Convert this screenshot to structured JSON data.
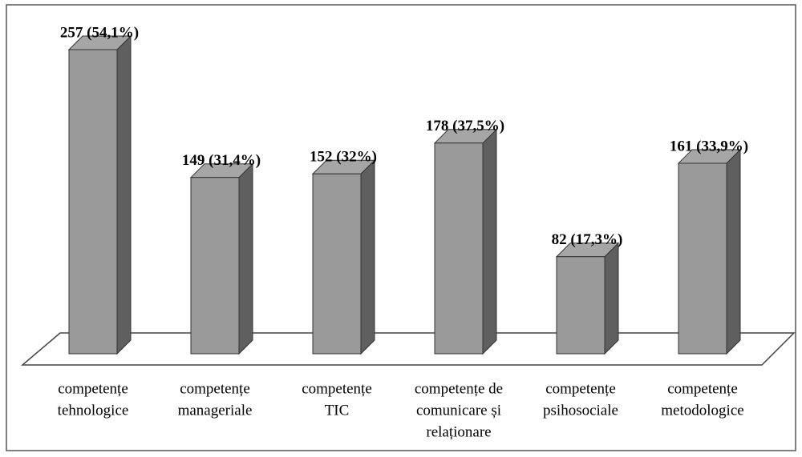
{
  "chart_data": {
    "type": "bar3d",
    "categories": [
      [
        "competențe",
        "tehnologice"
      ],
      [
        "competențe",
        "manageriale"
      ],
      [
        "competențe",
        "TIC"
      ],
      [
        "competențe de",
        "comunicare și",
        "relaționare"
      ],
      [
        "competențe",
        "psihosociale"
      ],
      [
        "competențe",
        "metodologice"
      ]
    ],
    "values": [
      257,
      149,
      152,
      178,
      82,
      161
    ],
    "value_labels": [
      "257 (54,1%)",
      "149 (31,4%)",
      "152 (32%)",
      "178 (37,5%)",
      "82 (17,3%)",
      "161 (33,9%)"
    ],
    "color": "#9a9a9a"
  }
}
